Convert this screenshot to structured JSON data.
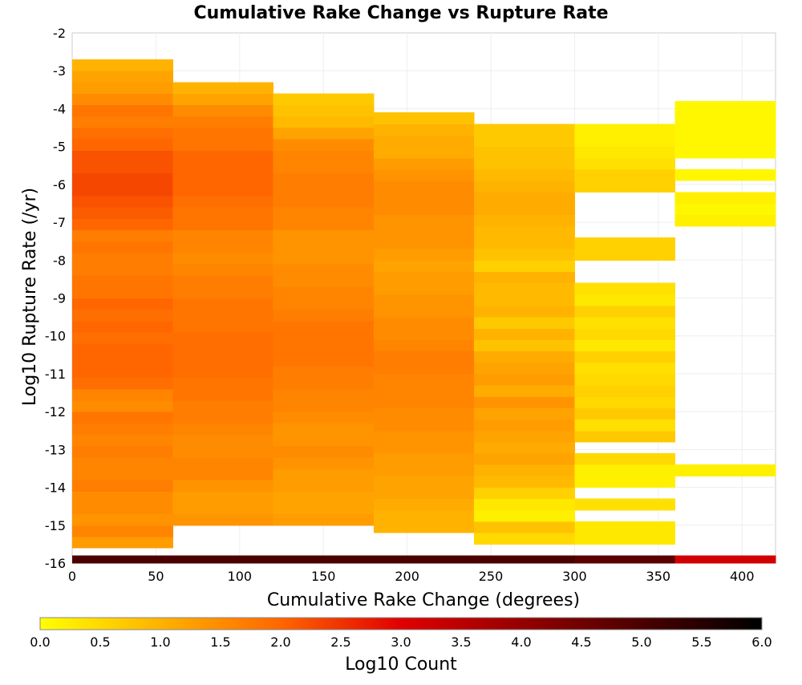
{
  "chart_data": {
    "type": "heatmap",
    "title": "Cumulative Rake Change vs Rupture Rate",
    "xlabel": "Cumulative Rake Change (degrees)",
    "ylabel": "Log10 Rupture Rate (/yr)",
    "xlim": [
      0,
      420
    ],
    "ylim": [
      -16,
      -2
    ],
    "x_ticks": [
      "0",
      "50",
      "100",
      "150",
      "200",
      "250",
      "300",
      "350",
      "400"
    ],
    "y_ticks": [
      "-2",
      "-3",
      "-4",
      "-5",
      "-6",
      "-7",
      "-8",
      "-9",
      "-10",
      "-11",
      "-12",
      "-13",
      "-14",
      "-15",
      "-16"
    ],
    "grid": true,
    "colorbar": {
      "label": "Log10 Count",
      "range": [
        0,
        6
      ],
      "ticks": [
        "0.0",
        "0.5",
        "1.0",
        "1.5",
        "2.0",
        "2.5",
        "3.0",
        "3.5",
        "4.0",
        "4.5",
        "5.0",
        "5.5",
        "6.0"
      ],
      "colors": [
        "#ffff00",
        "#ff6600",
        "#e00000",
        "#000000"
      ]
    },
    "bin_size": {
      "x": 60,
      "y": 0.3
    },
    "columns": [
      {
        "x_start": 0,
        "x_end": 60,
        "y_start": -16,
        "y_top": -2.7,
        "values": [
          5.0,
          1.3,
          1.6,
          1.4,
          1.5,
          1.5,
          1.7,
          1.6,
          1.6,
          1.7,
          1.6,
          1.7,
          1.8,
          1.5,
          1.6,
          1.9,
          2.0,
          2.0,
          2.0,
          1.9,
          2.0,
          1.9,
          2.0,
          1.8,
          1.8,
          1.7,
          1.7,
          1.8,
          1.7,
          2.0,
          2.1,
          2.2,
          2.3,
          2.3,
          2.2,
          2.2,
          2.0,
          1.9,
          1.7,
          1.8,
          1.5,
          1.3,
          1.2,
          1.0
        ]
      },
      {
        "x_start": 60,
        "x_end": 120,
        "y_start": -16,
        "y_top": -3.3,
        "values": [
          5.0,
          1.4,
          1.3,
          1.3,
          1.4,
          1.6,
          1.6,
          1.5,
          1.5,
          1.6,
          1.7,
          1.7,
          1.8,
          1.8,
          1.9,
          1.9,
          1.9,
          1.9,
          1.8,
          1.8,
          1.8,
          1.7,
          1.7,
          1.6,
          1.5,
          1.6,
          1.6,
          1.8,
          1.8,
          1.9,
          2.0,
          2.0,
          2.0,
          2.0,
          1.8,
          1.8,
          1.7,
          1.5,
          1.2,
          1.0
        ]
      },
      {
        "x_start": 120,
        "x_end": 180,
        "y_start": -16,
        "y_top": -3.6,
        "values": [
          5.0,
          1.3,
          1.2,
          1.2,
          1.3,
          1.3,
          1.4,
          1.5,
          1.4,
          1.4,
          1.5,
          1.6,
          1.6,
          1.7,
          1.7,
          1.8,
          1.8,
          1.8,
          1.8,
          1.7,
          1.6,
          1.6,
          1.5,
          1.5,
          1.4,
          1.4,
          1.4,
          1.6,
          1.6,
          1.7,
          1.7,
          1.7,
          1.6,
          1.6,
          1.5,
          1.2,
          0.9,
          0.8,
          0.7
        ]
      },
      {
        "x_start": 180,
        "x_end": 240,
        "y_start": -16,
        "y_top": -4.1,
        "values": [
          5.0,
          1.0,
          1.0,
          1.1,
          1.2,
          1.2,
          1.3,
          1.3,
          1.4,
          1.4,
          1.5,
          1.5,
          1.6,
          1.6,
          1.6,
          1.7,
          1.7,
          1.6,
          1.5,
          1.5,
          1.4,
          1.4,
          1.3,
          1.3,
          1.2,
          1.3,
          1.4,
          1.4,
          1.4,
          1.5,
          1.5,
          1.5,
          1.4,
          1.3,
          1.1,
          1.1,
          1.0,
          0.8
        ]
      },
      {
        "x_start": 240,
        "x_end": 300,
        "y_start": -16,
        "y_top": -4.4,
        "values": [
          5.0,
          0.5,
          0.8,
          0.2,
          0.3,
          0.6,
          0.9,
          1.0,
          1.2,
          1.1,
          1.2,
          1.3,
          1.2,
          1.4,
          1.1,
          1.3,
          1.2,
          1.1,
          0.8,
          1.0,
          0.7,
          1.0,
          0.9,
          0.9,
          1.0,
          0.6,
          0.8,
          0.9,
          0.9,
          1.0,
          1.1,
          1.1,
          1.0,
          0.9,
          0.8,
          0.8,
          0.7,
          0.7
        ]
      },
      {
        "x_start": 300,
        "x_end": 360,
        "y_start": -16,
        "y_top": -4.4,
        "values": [
          4.8,
          null,
          0.3,
          0.3,
          null,
          0.4,
          null,
          0.2,
          0.2,
          0.5,
          null,
          0.7,
          0.4,
          0.7,
          0.5,
          0.6,
          0.5,
          0.4,
          0.6,
          0.3,
          0.5,
          0.4,
          0.6,
          0.3,
          0.4,
          null,
          null,
          0.6,
          0.6,
          null,
          null,
          null,
          null,
          0.6,
          0.6,
          0.4,
          0.3,
          0.2,
          0.2
        ]
      },
      {
        "x_start": 360,
        "x_end": 420,
        "y_start": -16,
        "y_top": -3.8,
        "values": [
          3.2,
          null,
          null,
          null,
          null,
          null,
          null,
          null,
          0.2,
          null,
          null,
          null,
          null,
          null,
          null,
          null,
          null,
          null,
          null,
          null,
          null,
          null,
          null,
          null,
          null,
          null,
          null,
          null,
          null,
          null,
          0.2,
          0.1,
          0.2,
          null,
          0.1,
          null,
          0.1,
          0.1,
          0.1,
          0.1,
          0.1
        ]
      }
    ]
  }
}
